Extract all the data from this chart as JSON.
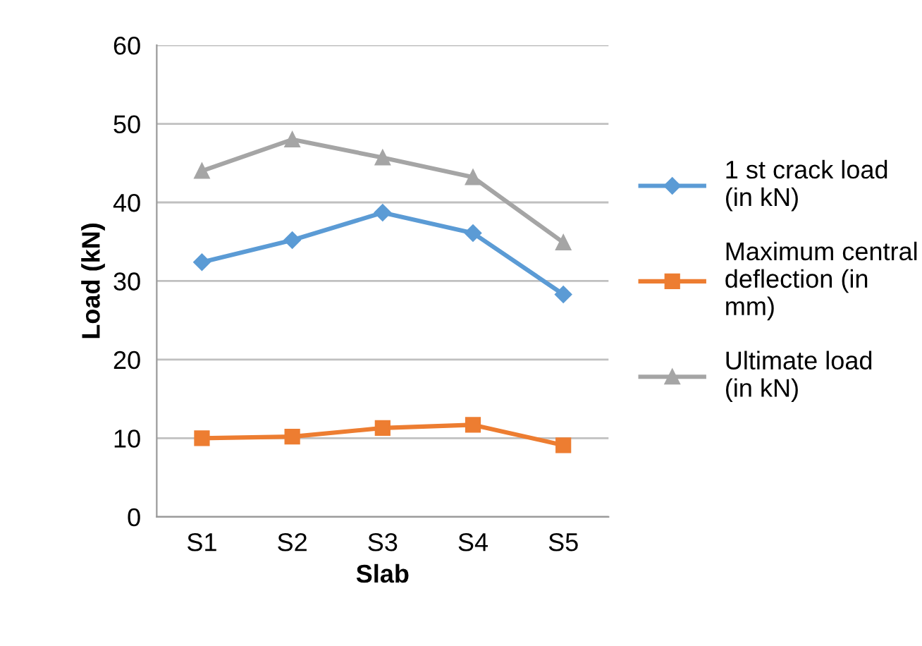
{
  "chart_data": {
    "type": "line",
    "xlabel": "Slab",
    "ylabel": "Load (kN)",
    "categories": [
      "S1",
      "S2",
      "S3",
      "S4",
      "S5"
    ],
    "series": [
      {
        "name": "1 st crack load (in kN)",
        "color": "#5b9bd5",
        "marker": "diamond",
        "values": [
          32.4,
          35.2,
          38.7,
          36.1,
          28.3
        ]
      },
      {
        "name": "Maximum central deflection (in mm)",
        "color": "#ed7d31",
        "marker": "square",
        "values": [
          10.0,
          10.2,
          11.3,
          11.7,
          9.1
        ]
      },
      {
        "name": "Ultimate load (in kN)",
        "color": "#a5a5a5",
        "marker": "triangle",
        "values": [
          44.0,
          48.0,
          45.7,
          43.2,
          34.9
        ]
      }
    ],
    "ylim": [
      0,
      60
    ],
    "yticks": [
      0,
      10,
      20,
      30,
      40,
      50,
      60
    ],
    "grid": "y",
    "legend": "right",
    "line_style": "solid"
  }
}
